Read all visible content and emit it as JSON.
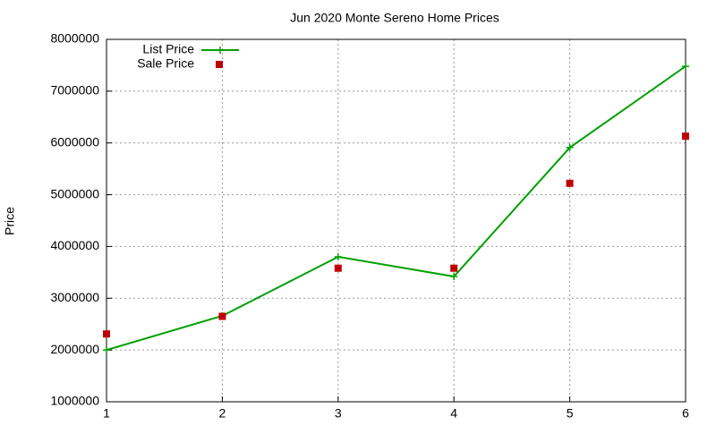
{
  "chart_data": {
    "type": "line",
    "title": "Jun 2020 Monte Sereno Home Prices",
    "y_label": "Price",
    "x": [
      1,
      2,
      3,
      4,
      5,
      6
    ],
    "xlim": [
      1,
      6
    ],
    "xticks": [
      1,
      2,
      3,
      4,
      5,
      6
    ],
    "ylim": [
      1000000,
      8000000
    ],
    "yticks": [
      1000000,
      2000000,
      3000000,
      4000000,
      5000000,
      6000000,
      7000000,
      8000000
    ],
    "grid": true,
    "legend": "top-left",
    "series": [
      {
        "name": "List Price",
        "color": "#00a000",
        "style": "linespoints",
        "values": [
          2000000,
          2660000,
          3800000,
          3420000,
          5910000,
          7480000
        ]
      },
      {
        "name": "Sale Price",
        "color": "#c00000",
        "style": "points",
        "values": [
          2310000,
          2650000,
          3580000,
          3580000,
          5220000,
          6130000
        ]
      }
    ]
  }
}
